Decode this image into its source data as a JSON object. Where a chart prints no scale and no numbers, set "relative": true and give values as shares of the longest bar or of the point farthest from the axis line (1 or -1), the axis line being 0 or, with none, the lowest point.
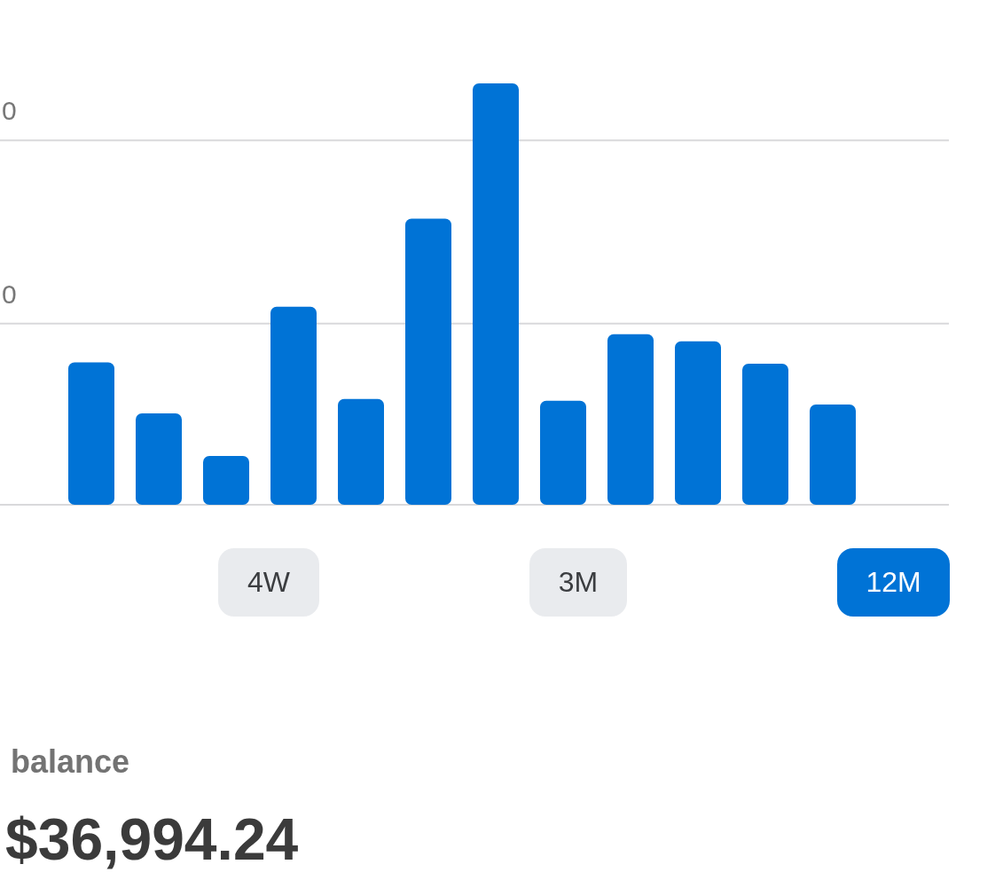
{
  "chart_data": {
    "type": "bar",
    "relative": true,
    "categories": [
      null,
      null,
      null,
      null,
      null,
      null,
      null,
      null,
      null,
      null,
      null,
      null
    ],
    "values": [
      0.338,
      0.217,
      0.116,
      0.47,
      0.251,
      0.679,
      1,
      0.247,
      0.405,
      0.388,
      0.335,
      0.238
    ],
    "color": "#0073d6",
    "ref_lines": [
      {
        "axis": "y",
        "value": 0.43,
        "color": "#d9d9db"
      },
      {
        "axis": "y",
        "value": 0.865,
        "color": "#d9d9db"
      }
    ],
    "annotations": [
      "4W",
      "3M",
      "12M",
      "balance",
      "$36,994.24",
      "0",
      "0"
    ]
  }
}
